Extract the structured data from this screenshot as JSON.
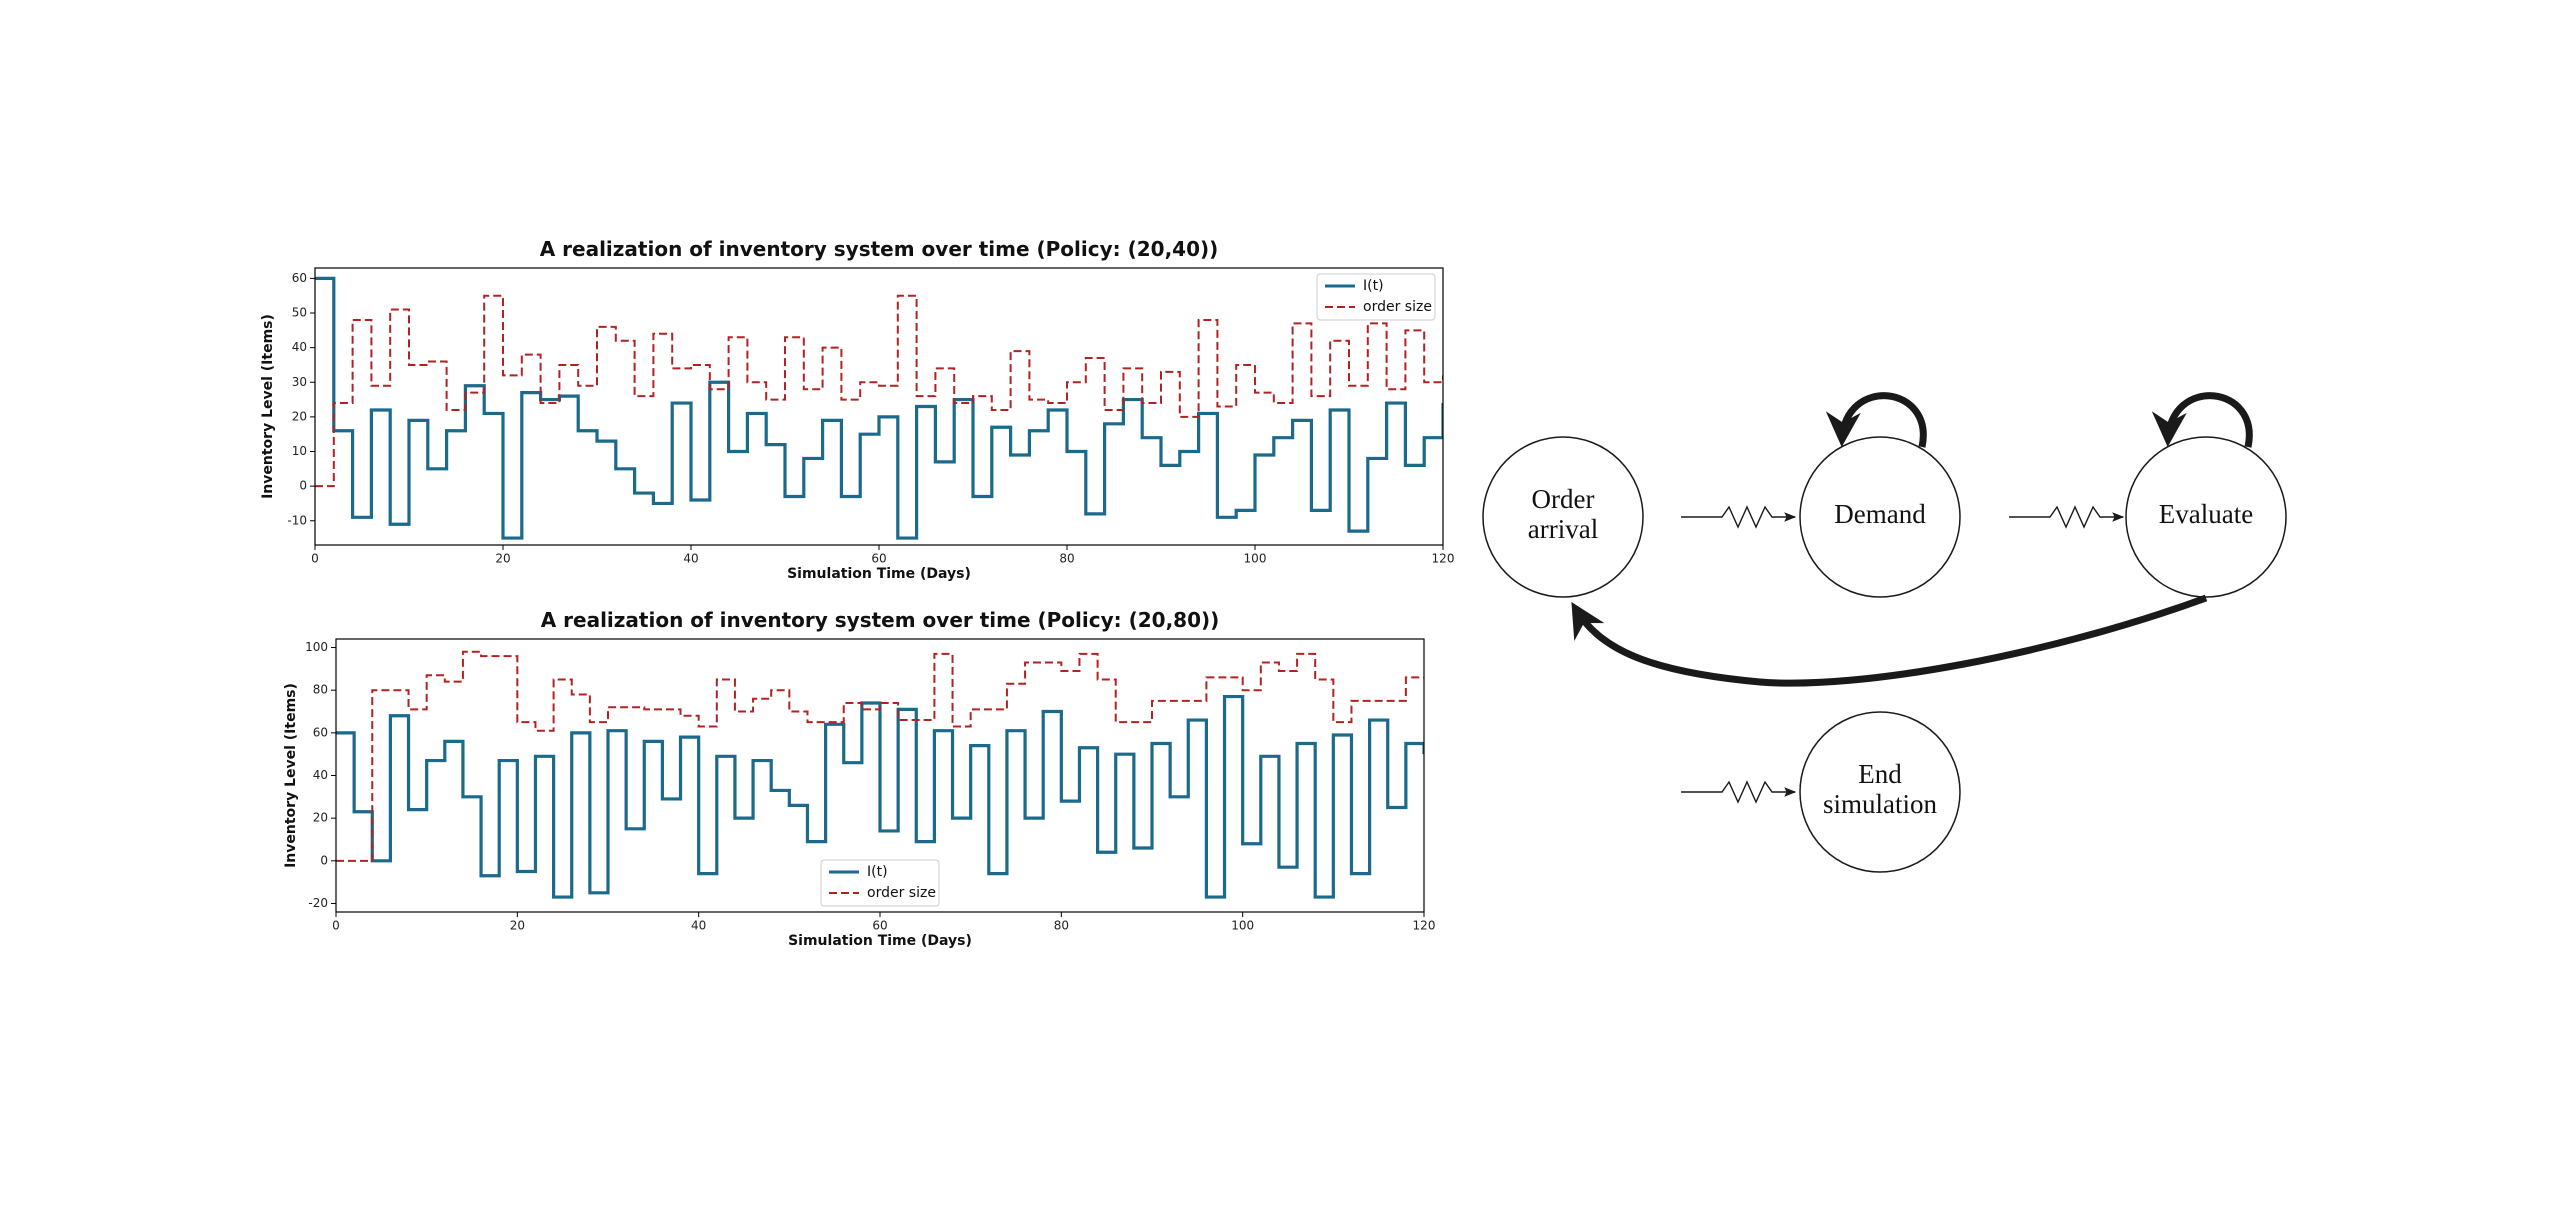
{
  "chart_data": [
    {
      "type": "line",
      "step": "post",
      "title": "A realization of inventory system over time (Policy: (20,40))",
      "x_label": "Simulation Time (Days)",
      "y_label": "Inventory Level (Items)",
      "x": [
        0,
        2,
        4,
        6,
        8,
        10,
        12,
        14,
        16,
        18,
        20,
        22,
        24,
        26,
        28,
        30,
        32,
        34,
        36,
        38,
        40,
        42,
        44,
        46,
        48,
        50,
        52,
        54,
        56,
        58,
        60,
        62,
        64,
        66,
        68,
        70,
        72,
        74,
        76,
        78,
        80,
        82,
        84,
        86,
        88,
        90,
        92,
        94,
        96,
        98,
        100,
        102,
        104,
        106,
        108,
        110,
        112,
        114,
        116,
        118,
        120
      ],
      "series": [
        {
          "name": "I(t)",
          "color": "#1b6a8c",
          "dash": false,
          "values": [
            60,
            16,
            -9,
            22,
            -11,
            19,
            5,
            16,
            29,
            21,
            -15,
            27,
            25,
            26,
            16,
            13,
            5,
            -2,
            -5,
            24,
            -4,
            30,
            10,
            21,
            12,
            -3,
            8,
            19,
            -3,
            15,
            20,
            -15,
            23,
            7,
            25,
            -3,
            17,
            9,
            16,
            22,
            10,
            -8,
            18,
            25,
            14,
            6,
            10,
            21,
            -9,
            -7,
            9,
            14,
            19,
            -7,
            22,
            -13,
            8,
            24,
            6,
            14,
            24
          ]
        },
        {
          "name": "order size",
          "color": "#b22222",
          "dash": true,
          "values": [
            0,
            24,
            48,
            29,
            51,
            35,
            36,
            22,
            27,
            55,
            32,
            38,
            24,
            35,
            29,
            46,
            42,
            26,
            44,
            34,
            35,
            28,
            43,
            30,
            25,
            43,
            28,
            40,
            25,
            30,
            29,
            55,
            26,
            34,
            24,
            26,
            22,
            39,
            25,
            24,
            30,
            37,
            22,
            34,
            24,
            33,
            20,
            48,
            23,
            35,
            27,
            24,
            47,
            26,
            42,
            29,
            47,
            28,
            45,
            30,
            32
          ]
        }
      ],
      "xlim": [
        0,
        120
      ],
      "xticks": [
        0,
        20,
        40,
        60,
        80,
        100,
        120
      ],
      "ylim": [
        -17,
        63
      ],
      "yticks": [
        -10,
        0,
        10,
        20,
        30,
        40,
        50,
        60
      ],
      "legend": "upper right"
    },
    {
      "type": "line",
      "step": "post",
      "title": "A realization of inventory system over time (Policy: (20,80))",
      "x_label": "Simulation Time (Days)",
      "y_label": "Inventory Level (Items)",
      "x": [
        0,
        2,
        4,
        6,
        8,
        10,
        12,
        14,
        16,
        18,
        20,
        22,
        24,
        26,
        28,
        30,
        32,
        34,
        36,
        38,
        40,
        42,
        44,
        46,
        48,
        50,
        52,
        54,
        56,
        58,
        60,
        62,
        64,
        66,
        68,
        70,
        72,
        74,
        76,
        78,
        80,
        82,
        84,
        86,
        88,
        90,
        92,
        94,
        96,
        98,
        100,
        102,
        104,
        106,
        108,
        110,
        112,
        114,
        116,
        118,
        120
      ],
      "series": [
        {
          "name": "I(t)",
          "color": "#1b6a8c",
          "dash": false,
          "values": [
            60,
            23,
            0,
            68,
            24,
            47,
            56,
            30,
            -7,
            47,
            -5,
            49,
            -17,
            60,
            -15,
            61,
            15,
            56,
            29,
            58,
            -6,
            49,
            20,
            47,
            33,
            26,
            9,
            64,
            46,
            74,
            14,
            71,
            9,
            61,
            20,
            54,
            -6,
            61,
            20,
            70,
            28,
            53,
            4,
            50,
            6,
            55,
            30,
            66,
            -17,
            77,
            8,
            49,
            -3,
            55,
            -17,
            59,
            -6,
            66,
            25,
            55,
            50
          ]
        },
        {
          "name": "order size",
          "color": "#b22222",
          "dash": true,
          "values": [
            0,
            0,
            80,
            80,
            71,
            87,
            84,
            98,
            96,
            96,
            65,
            61,
            85,
            78,
            65,
            72,
            72,
            71,
            71,
            68,
            63,
            85,
            70,
            76,
            80,
            70,
            65,
            65,
            74,
            71,
            74,
            66,
            66,
            97,
            63,
            71,
            71,
            83,
            93,
            93,
            89,
            97,
            85,
            65,
            65,
            75,
            75,
            75,
            86,
            86,
            80,
            93,
            89,
            97,
            85,
            65,
            75,
            75,
            75,
            86,
            86
          ]
        }
      ],
      "xlim": [
        0,
        120
      ],
      "xticks": [
        0,
        20,
        40,
        60,
        80,
        100,
        120
      ],
      "ylim": [
        -24,
        104
      ],
      "yticks": [
        -20,
        0,
        20,
        40,
        60,
        80,
        100
      ],
      "legend": "lower center"
    }
  ],
  "diagram": {
    "nodes": [
      {
        "label": [
          "Order",
          "arrival"
        ]
      },
      {
        "label": [
          "Demand"
        ]
      },
      {
        "label": [
          "Evaluate"
        ]
      },
      {
        "label": [
          "End",
          "simulation"
        ]
      }
    ]
  }
}
